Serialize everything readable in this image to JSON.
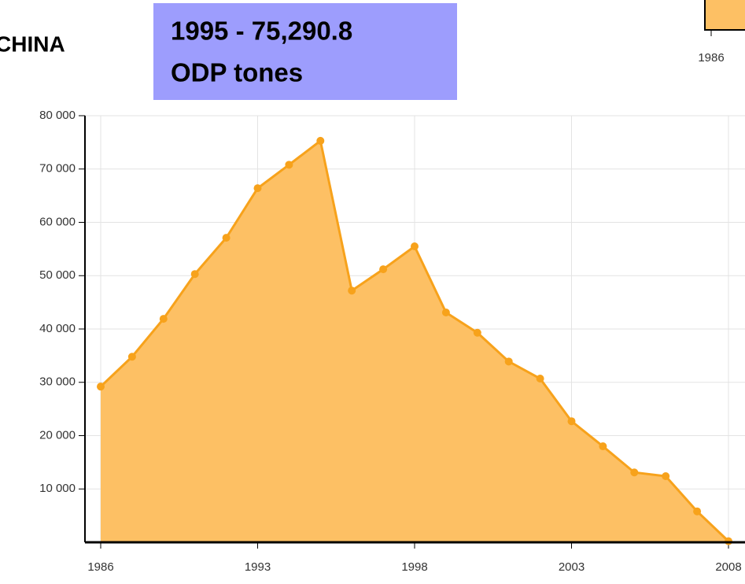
{
  "chart_data": {
    "type": "area",
    "title": "CHINA",
    "annotation": [
      "1995 - 75,290.8",
      "ODP tones"
    ],
    "navigator_label": "1986",
    "categories": [
      "1986",
      null,
      null,
      null,
      null,
      "1993",
      null,
      null,
      null,
      null,
      "1998",
      null,
      null,
      null,
      null,
      "2003",
      null,
      null,
      null,
      null,
      "2008"
    ],
    "values": [
      29200,
      34800,
      41900,
      50300,
      57100,
      66400,
      70800,
      75290.8,
      47200,
      51200,
      55500,
      43100,
      39300,
      33900,
      30700,
      22700,
      18000,
      13100,
      12400,
      5800,
      200
    ],
    "color": "#f7a21b",
    "fill": "#fdc064",
    "ylim": [
      0,
      80000
    ],
    "yticks": [
      {
        "value": 10000,
        "label": "10 000"
      },
      {
        "value": 20000,
        "label": "20 000"
      },
      {
        "value": 30000,
        "label": "30 000"
      },
      {
        "value": 40000,
        "label": "40 000"
      },
      {
        "value": 50000,
        "label": "50 000"
      },
      {
        "value": 60000,
        "label": "60 000"
      },
      {
        "value": 70000,
        "label": "70 000"
      },
      {
        "value": 80000,
        "label": "80 000"
      }
    ],
    "grid": true
  }
}
